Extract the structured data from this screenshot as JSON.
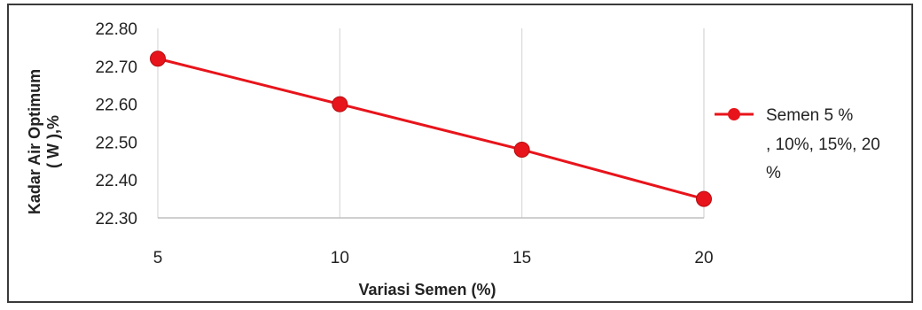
{
  "chart_data": {
    "type": "line",
    "title": "",
    "xlabel": "Variasi Semen (%)",
    "ylabel_lines": [
      "Kadar Air Optimum",
      "( W ),%"
    ],
    "x_categories": [
      "5",
      "10",
      "15",
      "20"
    ],
    "y_ticks": [
      "22.30",
      "22.40",
      "22.50",
      "22.60",
      "22.70",
      "22.80"
    ],
    "ylim": [
      22.3,
      22.8
    ],
    "grid": "vertical",
    "legend_position": "right",
    "series": [
      {
        "name_lines": [
          "Semen 5 %",
          ", 10%, 15%, 20",
          "%"
        ],
        "color": "#e8141b",
        "x": [
          5,
          10,
          15,
          20
        ],
        "y": [
          22.72,
          22.6,
          22.48,
          22.35
        ]
      }
    ]
  }
}
